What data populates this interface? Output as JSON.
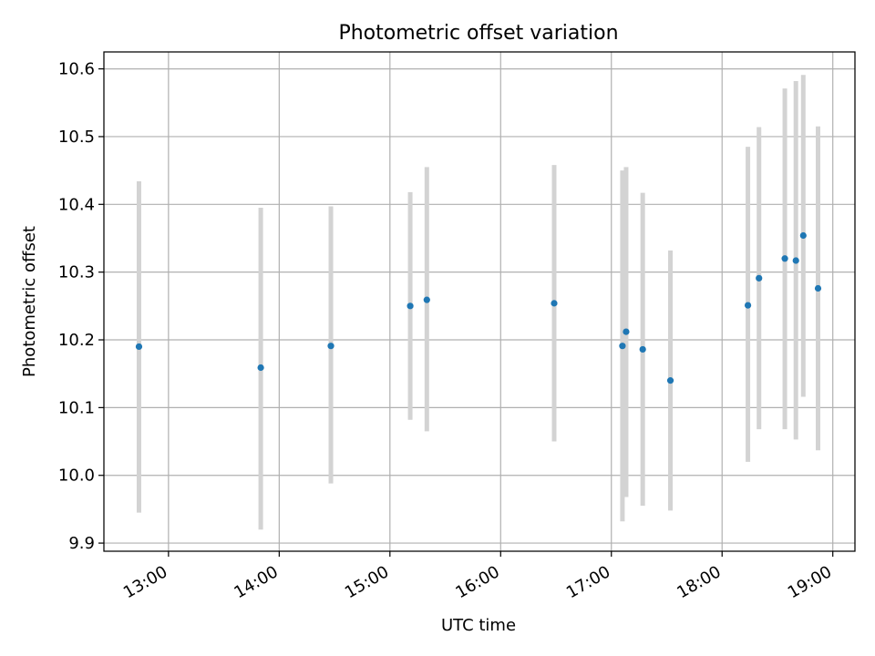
{
  "chart_data": {
    "type": "scatter",
    "title": "Photometric offset variation",
    "xlabel": "UTC time",
    "ylabel": "Photometric offset",
    "x_ticks": [
      "13:00",
      "14:00",
      "15:00",
      "16:00",
      "17:00",
      "18:00",
      "19:00"
    ],
    "y_ticks": [
      "9.9",
      "10.0",
      "10.1",
      "10.2",
      "10.3",
      "10.4",
      "10.5",
      "10.6"
    ],
    "xlim": [
      "12:25",
      "19:12"
    ],
    "ylim": [
      9.888,
      10.625
    ],
    "grid": true,
    "points": [
      {
        "x": "12:44",
        "y": 10.19,
        "ylow": 9.945,
        "yhigh": 10.434
      },
      {
        "x": "13:50",
        "y": 10.159,
        "ylow": 9.92,
        "yhigh": 10.395
      },
      {
        "x": "14:28",
        "y": 10.191,
        "ylow": 9.988,
        "yhigh": 10.397
      },
      {
        "x": "15:11",
        "y": 10.25,
        "ylow": 10.082,
        "yhigh": 10.418
      },
      {
        "x": "15:20",
        "y": 10.259,
        "ylow": 10.065,
        "yhigh": 10.455
      },
      {
        "x": "16:29",
        "y": 10.254,
        "ylow": 10.05,
        "yhigh": 10.458
      },
      {
        "x": "17:06",
        "y": 10.191,
        "ylow": 9.932,
        "yhigh": 10.45
      },
      {
        "x": "17:08",
        "y": 10.212,
        "ylow": 9.968,
        "yhigh": 10.455
      },
      {
        "x": "17:17",
        "y": 10.186,
        "ylow": 9.955,
        "yhigh": 10.417
      },
      {
        "x": "17:32",
        "y": 10.14,
        "ylow": 9.948,
        "yhigh": 10.332
      },
      {
        "x": "18:14",
        "y": 10.251,
        "ylow": 10.02,
        "yhigh": 10.485
      },
      {
        "x": "18:20",
        "y": 10.291,
        "ylow": 10.068,
        "yhigh": 10.514
      },
      {
        "x": "18:34",
        "y": 10.32,
        "ylow": 10.068,
        "yhigh": 10.571
      },
      {
        "x": "18:40",
        "y": 10.317,
        "ylow": 10.053,
        "yhigh": 10.582
      },
      {
        "x": "18:44",
        "y": 10.354,
        "ylow": 10.116,
        "yhigh": 10.591
      },
      {
        "x": "18:52",
        "y": 10.276,
        "ylow": 10.037,
        "yhigh": 10.515
      }
    ],
    "colors": {
      "point": "#1f77b4",
      "errorbar": "#d3d3d3",
      "grid": "#b0b0b0",
      "axes": "#000000"
    }
  }
}
